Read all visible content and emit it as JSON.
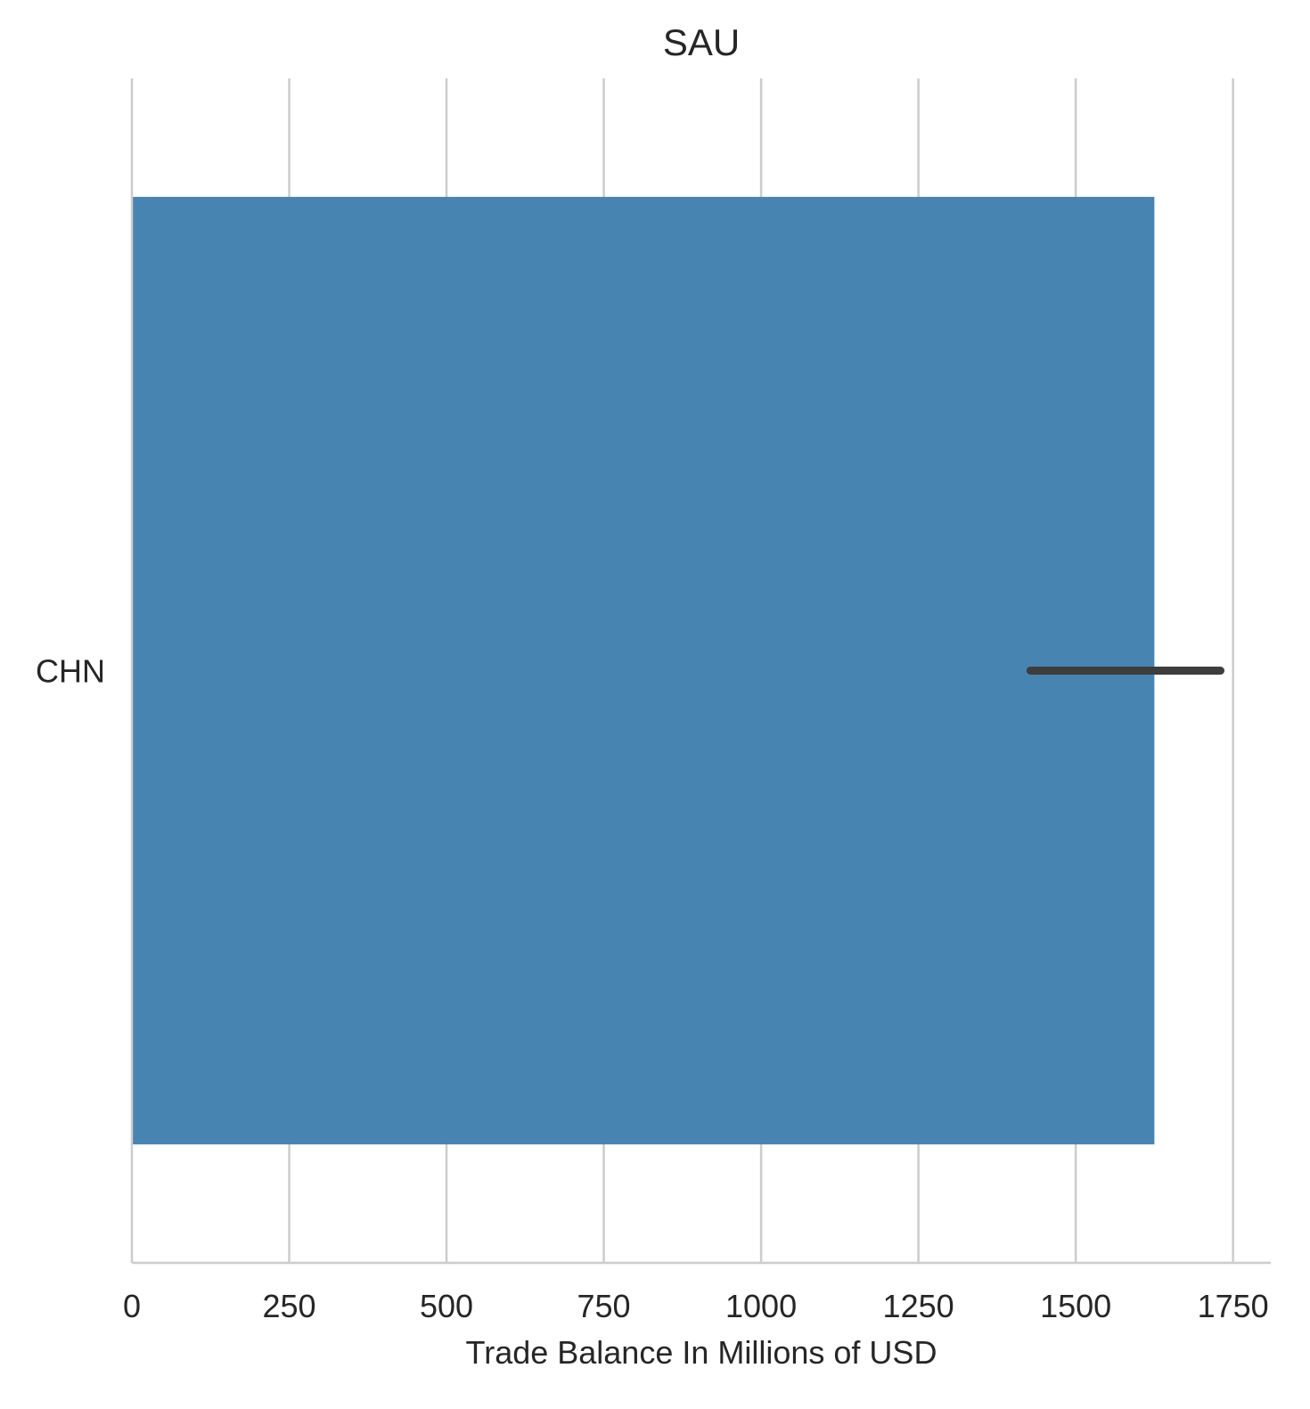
{
  "chart_data": {
    "type": "bar",
    "orientation": "horizontal",
    "title": "SAU",
    "xlabel": "Trade Balance In Millions of USD",
    "ylabel": "",
    "categories": [
      "CHN"
    ],
    "values": [
      1625
    ],
    "error_bars": [
      [
        1428,
        1730
      ]
    ],
    "xlim": [
      0,
      1810
    ],
    "xticks": [
      0,
      250,
      500,
      750,
      1000,
      1250,
      1500,
      1750
    ],
    "xtick_labels": [
      "0",
      "250",
      "500",
      "750",
      "1000",
      "1250",
      "1500",
      "1750"
    ],
    "grid": true,
    "colors": {
      "bar": "#4884b1",
      "error_bar": "#3d3d3d",
      "grid": "#cccccc"
    }
  }
}
